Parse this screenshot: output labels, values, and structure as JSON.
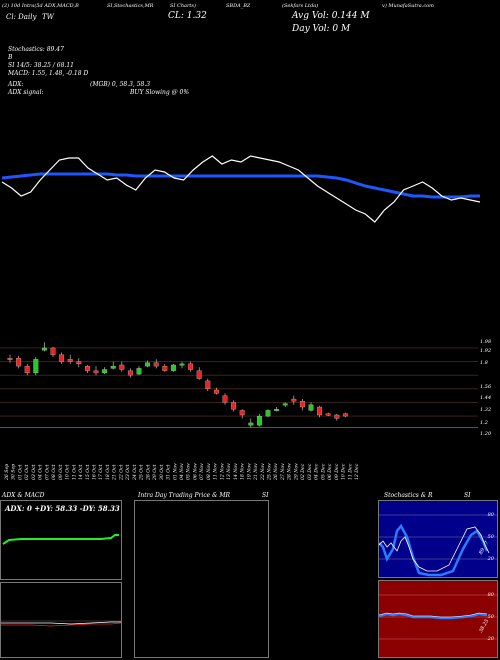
{
  "header": {
    "top_line": [
      "(2) 10d Intra(5d ADX,MACD,B",
      "SI,Stochastics,MR",
      "SI Charts)",
      "SBDA_BZ",
      "(Sekfars Ltda)",
      "v) MunafaSutra.com"
    ],
    "line2_left": "Cl: Daily",
    "line2_code": "TW",
    "close_label": "CL: 1.32",
    "avg_vol": "Avg Vol: 0.144  M",
    "day_vol": "Day Vol: 0   M",
    "stochastics": "Stochastics: 89.47",
    "stoch_b": "B",
    "stoch_si": "SI 14/5: 38.25 / 68.11",
    "macd": "MACD: 1.55, 1.48, -0.18 D",
    "adx": "ADX:",
    "adx_mid": "(MGB) 0, 58.3, 58.3",
    "adx_signal": "ADX  signal:",
    "buy_slowing": "BUY Slowing @ 0%"
  },
  "price_axis": {
    "ticks": [
      "1.98",
      "1.92",
      "1.8",
      "1.56",
      "1.44",
      "1.32",
      "1.2",
      "1.20"
    ]
  },
  "date_labels": [
    "26 Sep",
    "30 Sep",
    "01 Oct",
    "02 Oct",
    "03 Oct",
    "04 Oct",
    "07 Oct",
    "08 Oct",
    "09 Oct",
    "10 Oct",
    "11 Oct",
    "14 Oct",
    "15 Oct",
    "16 Oct",
    "17 Oct",
    "18 Oct",
    "21 Oct",
    "22 Oct",
    "23 Oct",
    "24 Oct",
    "25 Oct",
    "28 Oct",
    "29 Oct",
    "30 Oct",
    "31 Oct",
    "01 Nov",
    "04 Nov",
    "05 Nov",
    "06 Nov",
    "07 Nov",
    "08 Nov",
    "11 Nov",
    "12 Nov",
    "13 Nov",
    "14 Nov",
    "18 Nov",
    "19 Nov",
    "21 Nov",
    "22 Nov",
    "25 Nov",
    "26 Nov",
    "27 Nov",
    "28 Nov",
    "29 Nov",
    "02 Dec",
    "03 Dec",
    "04 Dec",
    "05 Dec",
    "06 Dec",
    "09 Dec",
    "10 Dec",
    "11 Dec",
    "12 Dec"
  ],
  "chart_data": {
    "type": "candlestick",
    "ylim": [
      1.18,
      1.99
    ],
    "candles": [
      {
        "o": 1.82,
        "h": 1.86,
        "l": 1.79,
        "c": 1.83,
        "up": false
      },
      {
        "o": 1.83,
        "h": 1.85,
        "l": 1.74,
        "c": 1.76,
        "up": false
      },
      {
        "o": 1.76,
        "h": 1.78,
        "l": 1.68,
        "c": 1.7,
        "up": false
      },
      {
        "o": 1.7,
        "h": 1.84,
        "l": 1.68,
        "c": 1.82,
        "up": true
      },
      {
        "o": 1.9,
        "h": 1.97,
        "l": 1.89,
        "c": 1.92,
        "up": true
      },
      {
        "o": 1.92,
        "h": 1.93,
        "l": 1.84,
        "c": 1.86,
        "up": false
      },
      {
        "o": 1.86,
        "h": 1.88,
        "l": 1.78,
        "c": 1.8,
        "up": false
      },
      {
        "o": 1.8,
        "h": 1.86,
        "l": 1.78,
        "c": 1.82,
        "up": false
      },
      {
        "o": 1.8,
        "h": 1.83,
        "l": 1.75,
        "c": 1.78,
        "up": false
      },
      {
        "o": 1.76,
        "h": 1.77,
        "l": 1.7,
        "c": 1.72,
        "up": false
      },
      {
        "o": 1.72,
        "h": 1.76,
        "l": 1.68,
        "c": 1.7,
        "up": false
      },
      {
        "o": 1.7,
        "h": 1.75,
        "l": 1.69,
        "c": 1.73,
        "up": true
      },
      {
        "o": 1.74,
        "h": 1.8,
        "l": 1.73,
        "c": 1.76,
        "up": true
      },
      {
        "o": 1.77,
        "h": 1.8,
        "l": 1.71,
        "c": 1.73,
        "up": false
      },
      {
        "o": 1.72,
        "h": 1.74,
        "l": 1.66,
        "c": 1.68,
        "up": false
      },
      {
        "o": 1.69,
        "h": 1.76,
        "l": 1.68,
        "c": 1.74,
        "up": true
      },
      {
        "o": 1.76,
        "h": 1.81,
        "l": 1.75,
        "c": 1.79,
        "up": true
      },
      {
        "o": 1.79,
        "h": 1.82,
        "l": 1.74,
        "c": 1.76,
        "up": false
      },
      {
        "o": 1.76,
        "h": 1.78,
        "l": 1.71,
        "c": 1.72,
        "up": false
      },
      {
        "o": 1.72,
        "h": 1.78,
        "l": 1.71,
        "c": 1.77,
        "up": true
      },
      {
        "o": 1.77,
        "h": 1.8,
        "l": 1.74,
        "c": 1.78,
        "up": true
      },
      {
        "o": 1.78,
        "h": 1.8,
        "l": 1.71,
        "c": 1.73,
        "up": false
      },
      {
        "o": 1.72,
        "h": 1.75,
        "l": 1.64,
        "c": 1.65,
        "up": false
      },
      {
        "o": 1.63,
        "h": 1.65,
        "l": 1.54,
        "c": 1.56,
        "up": false
      },
      {
        "o": 1.55,
        "h": 1.57,
        "l": 1.51,
        "c": 1.52,
        "up": false
      },
      {
        "o": 1.5,
        "h": 1.52,
        "l": 1.42,
        "c": 1.44,
        "up": false
      },
      {
        "o": 1.44,
        "h": 1.46,
        "l": 1.36,
        "c": 1.38,
        "up": false
      },
      {
        "o": 1.37,
        "h": 1.38,
        "l": 1.3,
        "c": 1.33,
        "up": false
      },
      {
        "o": 1.26,
        "h": 1.3,
        "l": 1.22,
        "c": 1.24,
        "up": true
      },
      {
        "o": 1.24,
        "h": 1.34,
        "l": 1.23,
        "c": 1.32,
        "up": true
      },
      {
        "o": 1.32,
        "h": 1.38,
        "l": 1.31,
        "c": 1.37,
        "up": true
      },
      {
        "o": 1.38,
        "h": 1.4,
        "l": 1.36,
        "c": 1.38,
        "up": true
      },
      {
        "o": 1.42,
        "h": 1.44,
        "l": 1.4,
        "c": 1.43,
        "up": true
      },
      {
        "o": 1.47,
        "h": 1.5,
        "l": 1.42,
        "c": 1.45,
        "up": false
      },
      {
        "o": 1.45,
        "h": 1.47,
        "l": 1.37,
        "c": 1.4,
        "up": false
      },
      {
        "o": 1.37,
        "h": 1.44,
        "l": 1.36,
        "c": 1.42,
        "up": true
      },
      {
        "o": 1.4,
        "h": 1.41,
        "l": 1.31,
        "c": 1.33,
        "up": false
      },
      {
        "o": 1.33,
        "h": 1.35,
        "l": 1.32,
        "c": 1.34,
        "up": false
      },
      {
        "o": 1.33,
        "h": 1.34,
        "l": 1.28,
        "c": 1.3,
        "up": false
      },
      {
        "o": 1.34,
        "h": 1.35,
        "l": 1.31,
        "c": 1.32,
        "up": false
      }
    ],
    "price_line": [
      112,
      118,
      126,
      122,
      110,
      100,
      90,
      88,
      88,
      98,
      104,
      110,
      108,
      115,
      120,
      108,
      100,
      102,
      108,
      110,
      100,
      92,
      86,
      94,
      90,
      92,
      86,
      88,
      90,
      92,
      96,
      100,
      108,
      116,
      122,
      128,
      134,
      140,
      144,
      152,
      140,
      132,
      120,
      116,
      112,
      118,
      126,
      130,
      128,
      130,
      132
    ],
    "avg_line": [
      108,
      107,
      106,
      105,
      104,
      104,
      104,
      104,
      104,
      104,
      104,
      104,
      105,
      105,
      106,
      106,
      106,
      106,
      106,
      106,
      106,
      106,
      106,
      106,
      106,
      106,
      106,
      106,
      106,
      106,
      106,
      106,
      106,
      106,
      107,
      108,
      110,
      113,
      116,
      118,
      120,
      122,
      124,
      126,
      126,
      127,
      127,
      127,
      127,
      126,
      126
    ]
  },
  "panels": {
    "adx": {
      "title": "ADX  & MACD",
      "label": "ADX: 0   +DY: 58.33  -DY: 58.33"
    },
    "intraday": {
      "title": "Intra  Day Trading Price  & MR",
      "title_right": "SI"
    },
    "stoch": {
      "title": "Stochastics & R",
      "title_right": "SI",
      "ticks_top": [
        "80",
        "50",
        "20"
      ],
      "ticks_bot": [
        "80",
        "50",
        "20"
      ],
      "side_label_top": "89.47",
      "side_label_bot": "38.25"
    }
  },
  "colors": {
    "up": "#22cc22",
    "down": "#ee2222",
    "avg_line": "#1e56ff",
    "red_panel": "#8b0000"
  }
}
